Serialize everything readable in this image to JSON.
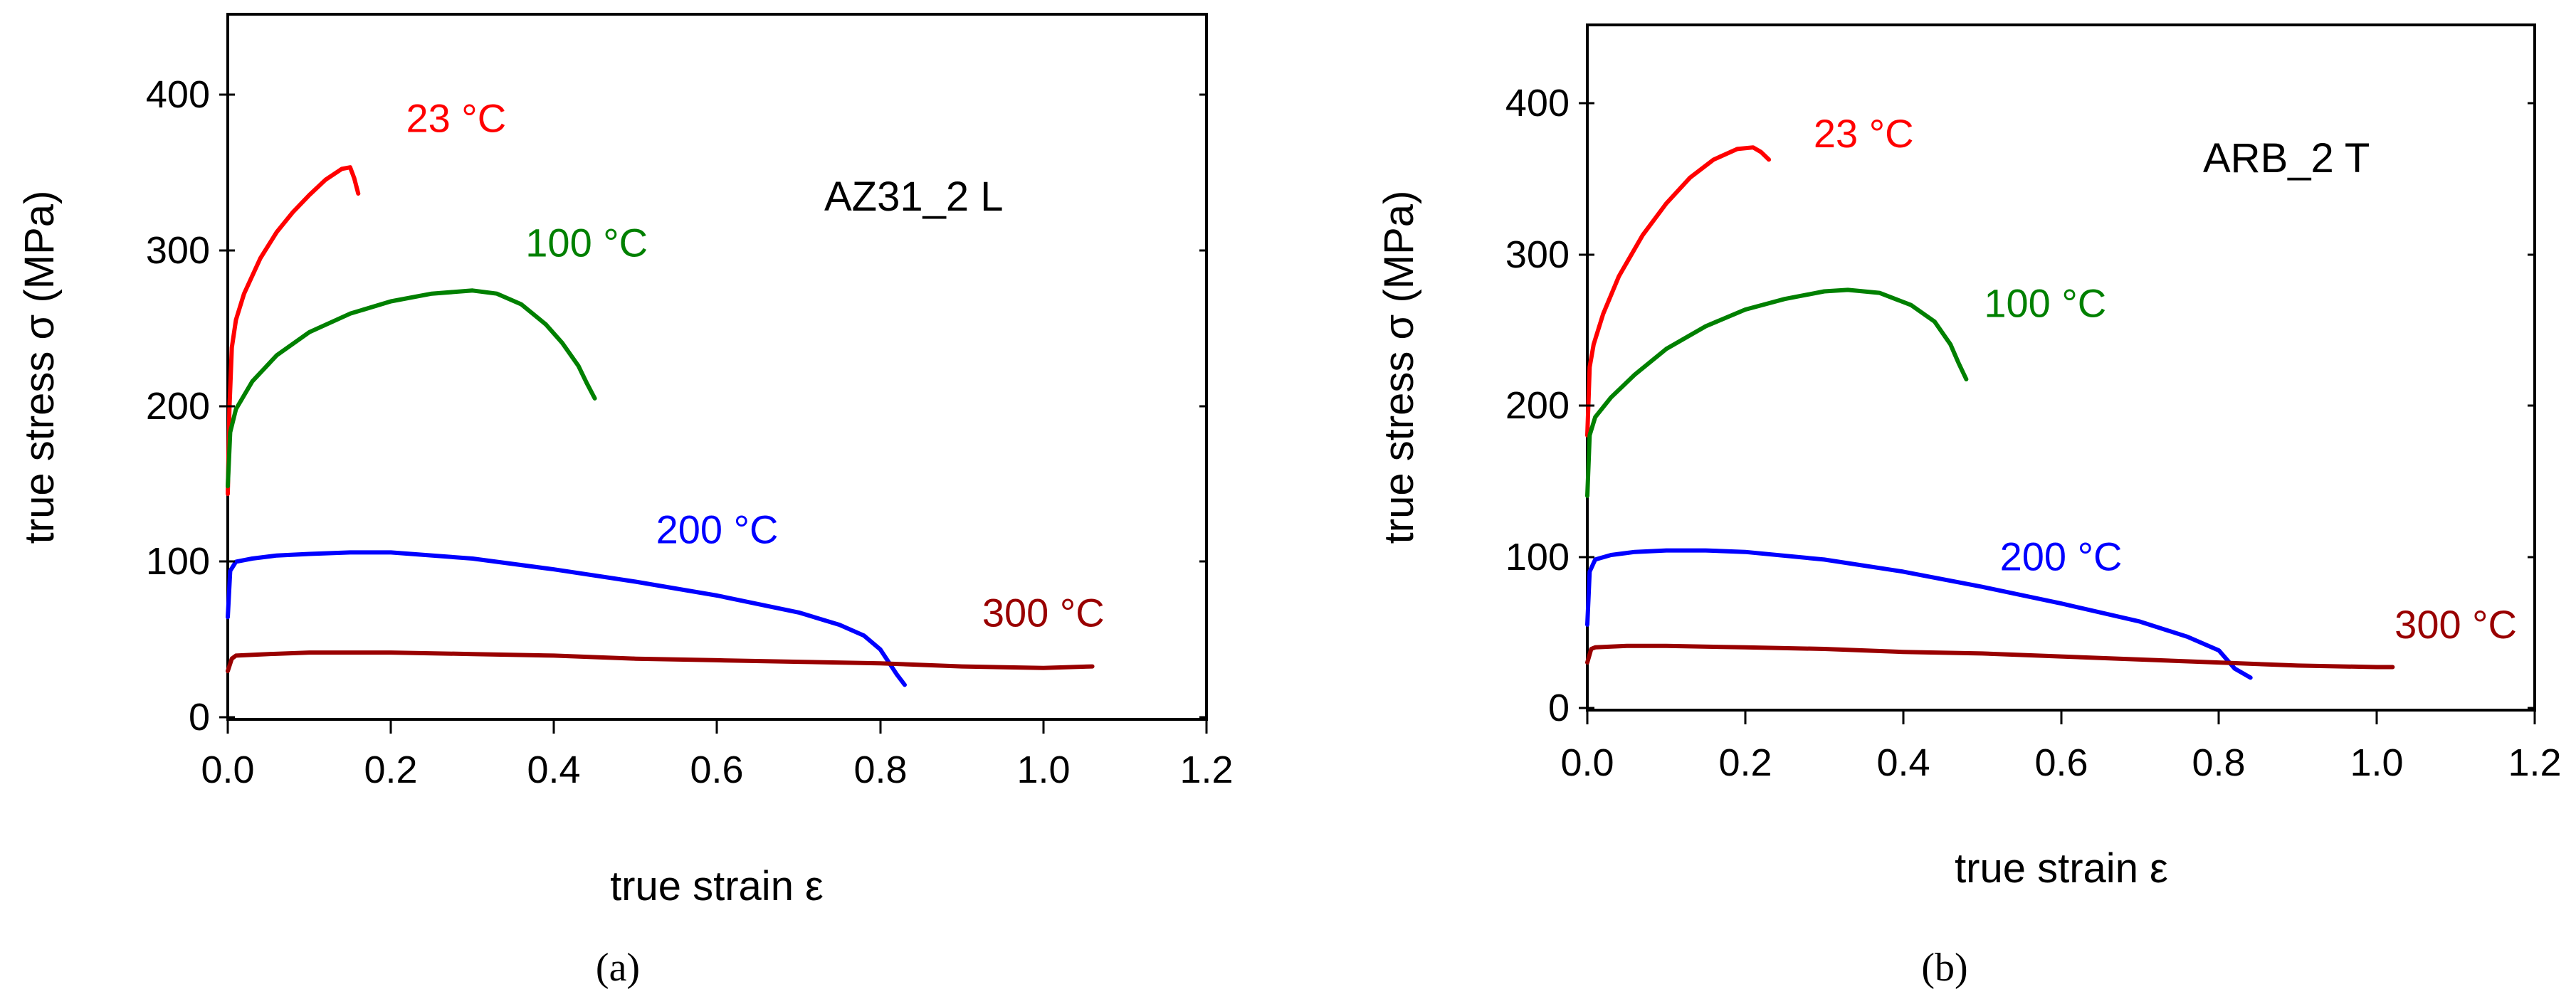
{
  "chart_data": [
    {
      "type": "line",
      "panel_label": "AZ31_2 L",
      "caption": "(a)",
      "xlabel": "true strain ε",
      "ylabel": "true stress σ (MPa)",
      "xlim": [
        0,
        1.2
      ],
      "ylim": [
        0,
        450
      ],
      "xticks": [
        "0.0",
        "0.2",
        "0.4",
        "0.6",
        "0.8",
        "1.0",
        "1.2"
      ],
      "yticks": [
        "0",
        "100",
        "200",
        "300",
        "400"
      ],
      "series": [
        {
          "name": "23 °C",
          "color": "#ff0000",
          "x": [
            0,
            0.002,
            0.005,
            0.01,
            0.02,
            0.04,
            0.06,
            0.08,
            0.1,
            0.12,
            0.14,
            0.15,
            0.155,
            0.16
          ],
          "y": [
            145,
            200,
            240,
            258,
            275,
            298,
            315,
            328,
            339,
            349,
            356,
            357,
            350,
            340
          ]
        },
        {
          "name": "100 °C",
          "color": "#008000",
          "x": [
            0,
            0.003,
            0.01,
            0.03,
            0.06,
            0.1,
            0.15,
            0.2,
            0.25,
            0.3,
            0.33,
            0.36,
            0.39,
            0.41,
            0.43,
            0.44,
            0.45
          ],
          "y": [
            150,
            185,
            200,
            218,
            235,
            250,
            262,
            270,
            275,
            277,
            275,
            268,
            255,
            243,
            228,
            217,
            207
          ]
        },
        {
          "name": "200 °C",
          "color": "#0000ff",
          "x": [
            0,
            0.003,
            0.01,
            0.03,
            0.06,
            0.1,
            0.15,
            0.2,
            0.3,
            0.4,
            0.5,
            0.6,
            0.7,
            0.75,
            0.78,
            0.8,
            0.82,
            0.83
          ],
          "y": [
            65,
            95,
            101,
            103,
            105,
            106,
            107,
            107,
            103,
            96,
            88,
            79,
            68,
            60,
            53,
            44,
            28,
            21
          ]
        },
        {
          "name": "300 °C",
          "color": "#990000",
          "x": [
            0,
            0.005,
            0.01,
            0.05,
            0.1,
            0.2,
            0.3,
            0.4,
            0.5,
            0.6,
            0.7,
            0.8,
            0.9,
            1.0,
            1.06
          ],
          "y": [
            30,
            38,
            40,
            41,
            42,
            42,
            41,
            40,
            38,
            37,
            36,
            35,
            33,
            32,
            33
          ]
        }
      ],
      "annotations": [
        {
          "text": "23 °C",
          "color": "#ff0000",
          "x": 0.28,
          "y": 380
        },
        {
          "text": "100 °C",
          "color": "#008000",
          "x": 0.44,
          "y": 299
        },
        {
          "text": "200 °C",
          "color": "#0000ff",
          "x": 0.6,
          "y": 113
        },
        {
          "text": "300 °C",
          "color": "#990000",
          "x": 1.0,
          "y": 59
        }
      ]
    },
    {
      "type": "line",
      "panel_label": "ARB_2 T",
      "caption": "(b)",
      "xlabel": "true strain ε",
      "ylabel": "true stress σ (MPa)",
      "xlim": [
        0,
        1.2
      ],
      "ylim": [
        0,
        450
      ],
      "xticks": [
        "0.0",
        "0.2",
        "0.4",
        "0.6",
        "0.8",
        "1.0",
        "1.2"
      ],
      "yticks": [
        "0",
        "100",
        "200",
        "300",
        "400"
      ],
      "series": [
        {
          "name": "23 °C",
          "color": "#ff0000",
          "x": [
            0,
            0.003,
            0.008,
            0.02,
            0.04,
            0.07,
            0.1,
            0.13,
            0.16,
            0.19,
            0.21,
            0.22,
            0.23
          ],
          "y": [
            180,
            225,
            240,
            260,
            285,
            312,
            333,
            350,
            362,
            369,
            370,
            367,
            362
          ]
        },
        {
          "name": "100 °C",
          "color": "#008000",
          "x": [
            0,
            0.003,
            0.01,
            0.03,
            0.06,
            0.1,
            0.15,
            0.2,
            0.25,
            0.3,
            0.33,
            0.37,
            0.41,
            0.44,
            0.46,
            0.47,
            0.48
          ],
          "y": [
            140,
            180,
            192,
            205,
            220,
            237,
            252,
            263,
            270,
            275,
            276,
            274,
            266,
            255,
            240,
            228,
            217
          ]
        },
        {
          "name": "200 °C",
          "color": "#0000ff",
          "x": [
            0,
            0.003,
            0.01,
            0.03,
            0.06,
            0.1,
            0.15,
            0.2,
            0.3,
            0.4,
            0.5,
            0.6,
            0.7,
            0.76,
            0.8,
            0.82,
            0.84
          ],
          "y": [
            55,
            90,
            98,
            101,
            103,
            104,
            104,
            103,
            98,
            90,
            80,
            69,
            57,
            47,
            38,
            26,
            20
          ]
        },
        {
          "name": "300 °C",
          "color": "#990000",
          "x": [
            0,
            0.005,
            0.01,
            0.05,
            0.1,
            0.2,
            0.3,
            0.4,
            0.5,
            0.6,
            0.7,
            0.8,
            0.9,
            1.0,
            1.02
          ],
          "y": [
            30,
            39,
            40,
            41,
            41,
            40,
            39,
            37,
            36,
            34,
            32,
            30,
            28,
            27,
            27
          ]
        }
      ],
      "annotations": [
        {
          "text": "23 °C",
          "color": "#ff0000",
          "x": 0.35,
          "y": 370
        },
        {
          "text": "100 °C",
          "color": "#008000",
          "x": 0.58,
          "y": 258
        },
        {
          "text": "200 °C",
          "color": "#0000ff",
          "x": 0.6,
          "y": 91
        },
        {
          "text": "300 °C",
          "color": "#990000",
          "x": 1.1,
          "y": 46
        }
      ]
    }
  ]
}
